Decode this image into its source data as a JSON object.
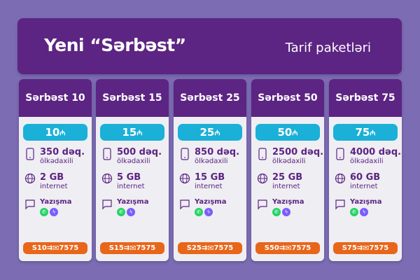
{
  "header": {
    "title": "Yeni “Sərbəst”",
    "subtitle": "Tarif paketləri"
  },
  "colors": {
    "background": "#7c6cb4",
    "brand_purple": "#5c2483",
    "price_cyan": "#1ab0d8",
    "sms_orange": "#e8661a",
    "whatsapp": "#25d366",
    "messenger": "#7b5cff"
  },
  "plans": [
    {
      "name": "Sərbəst 10",
      "price": "10",
      "currency": "₼",
      "minutes": "350 dəq.",
      "minutes_label": "ölkədaxili",
      "data": "2 GB",
      "data_label": "internet",
      "messaging": "Yazışma",
      "sms_code": "S10",
      "sms_number": "7575"
    },
    {
      "name": "Sərbəst 15",
      "price": "15",
      "currency": "₼",
      "minutes": "500 dəq.",
      "minutes_label": "ölkədaxili",
      "data": "5 GB",
      "data_label": "internet",
      "messaging": "Yazışma",
      "sms_code": "S15",
      "sms_number": "7575"
    },
    {
      "name": "Sərbəst 25",
      "price": "25",
      "currency": "₼",
      "minutes": "850 dəq.",
      "minutes_label": "ölkədaxili",
      "data": "15 GB",
      "data_label": "internet",
      "messaging": "Yazışma",
      "sms_code": "S25",
      "sms_number": "7575"
    },
    {
      "name": "Sərbəst 50",
      "price": "50",
      "currency": "₼",
      "minutes": "2500 dəq.",
      "minutes_label": "ölkədaxili",
      "data": "25 GB",
      "data_label": "internet",
      "messaging": "Yazışma",
      "sms_code": "S50",
      "sms_number": "7575"
    },
    {
      "name": "Sərbəst 75",
      "price": "75",
      "currency": "₼",
      "minutes": "4000 dəq.",
      "minutes_label": "ölkədaxili",
      "data": "60 GB",
      "data_label": "internet",
      "messaging": "Yazışma",
      "sms_code": "S75",
      "sms_number": "7575"
    }
  ]
}
